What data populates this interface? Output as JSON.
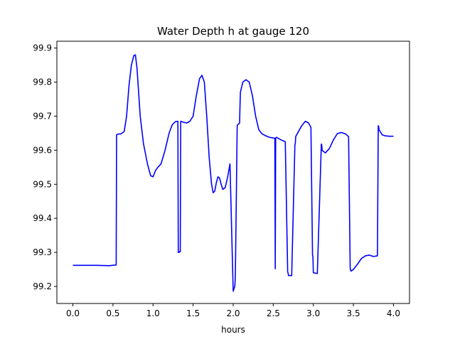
{
  "chart_data": {
    "type": "line",
    "title": "Water Depth h at gauge 120",
    "xlabel": "hours",
    "ylabel": "",
    "xlim": [
      -0.2,
      4.2
    ],
    "ylim": [
      99.15,
      99.92
    ],
    "grid": false,
    "x_ticks": [
      0.0,
      0.5,
      1.0,
      1.5,
      2.0,
      2.5,
      3.0,
      3.5,
      4.0
    ],
    "x_tick_labels": [
      "0.0",
      "0.5",
      "1.0",
      "1.5",
      "2.0",
      "2.5",
      "3.0",
      "3.5",
      "4.0"
    ],
    "y_ticks": [
      99.2,
      99.3,
      99.4,
      99.5,
      99.6,
      99.7,
      99.8,
      99.9
    ],
    "y_tick_labels": [
      "99.2",
      "99.3",
      "99.4",
      "99.5",
      "99.6",
      "99.7",
      "99.8",
      "99.9"
    ],
    "series": [
      {
        "color": "#0000ff",
        "x": [
          0.0,
          0.15,
          0.3,
          0.45,
          0.54,
          0.545,
          0.555,
          0.6,
          0.64,
          0.67,
          0.7,
          0.73,
          0.76,
          0.78,
          0.8,
          0.84,
          0.88,
          0.93,
          0.97,
          1.0,
          1.03,
          1.06,
          1.1,
          1.15,
          1.2,
          1.24,
          1.28,
          1.31,
          1.315,
          1.325,
          1.335,
          1.34,
          1.345,
          1.38,
          1.42,
          1.46,
          1.5,
          1.54,
          1.58,
          1.61,
          1.64,
          1.67,
          1.7,
          1.73,
          1.75,
          1.77,
          1.79,
          1.81,
          1.83,
          1.85,
          1.87,
          1.9,
          1.93,
          1.96,
          2.0,
          2.02,
          2.025,
          2.03,
          2.05,
          2.08,
          2.085,
          2.09,
          2.12,
          2.16,
          2.2,
          2.24,
          2.28,
          2.32,
          2.36,
          2.4,
          2.45,
          2.5,
          2.52,
          2.525,
          2.53,
          2.535,
          2.54,
          2.6,
          2.65,
          2.68,
          2.685,
          2.69,
          2.73,
          2.77,
          2.775,
          2.78,
          2.85,
          2.9,
          2.94,
          2.97,
          2.99,
          2.995,
          3.0,
          3.05,
          3.1,
          3.105,
          3.11,
          3.15,
          3.2,
          3.25,
          3.3,
          3.35,
          3.4,
          3.44,
          3.46,
          3.465,
          3.47,
          3.5,
          3.55,
          3.6,
          3.65,
          3.7,
          3.75,
          3.8,
          3.81,
          3.815,
          3.82,
          3.86,
          3.9,
          3.95,
          4.0
        ],
        "y": [
          99.262,
          99.262,
          99.262,
          99.261,
          99.263,
          99.645,
          99.647,
          99.648,
          99.655,
          99.7,
          99.79,
          99.85,
          99.878,
          99.88,
          99.84,
          99.7,
          99.62,
          99.56,
          99.525,
          99.522,
          99.54,
          99.55,
          99.56,
          99.6,
          99.65,
          99.675,
          99.684,
          99.685,
          99.3,
          99.3,
          99.303,
          99.302,
          99.685,
          99.682,
          99.68,
          99.685,
          99.7,
          99.76,
          99.81,
          99.82,
          99.8,
          99.7,
          99.58,
          99.5,
          99.475,
          99.48,
          99.505,
          99.522,
          99.518,
          99.5,
          99.485,
          99.49,
          99.52,
          99.56,
          99.186,
          99.2,
          99.22,
          99.285,
          99.673,
          99.68,
          99.73,
          99.77,
          99.8,
          99.807,
          99.8,
          99.76,
          99.7,
          99.66,
          99.648,
          99.643,
          99.638,
          99.636,
          99.635,
          99.252,
          99.635,
          99.637,
          99.638,
          99.63,
          99.625,
          99.242,
          99.24,
          99.232,
          99.232,
          99.615,
          99.62,
          99.64,
          99.67,
          99.685,
          99.68,
          99.667,
          99.292,
          99.288,
          99.24,
          99.238,
          99.618,
          99.615,
          99.6,
          99.592,
          99.605,
          99.63,
          99.649,
          99.652,
          99.648,
          99.64,
          99.254,
          99.248,
          99.245,
          99.25,
          99.265,
          99.282,
          99.29,
          99.292,
          99.288,
          99.29,
          99.672,
          99.67,
          99.66,
          99.645,
          99.642,
          99.641,
          99.641
        ]
      }
    ]
  }
}
